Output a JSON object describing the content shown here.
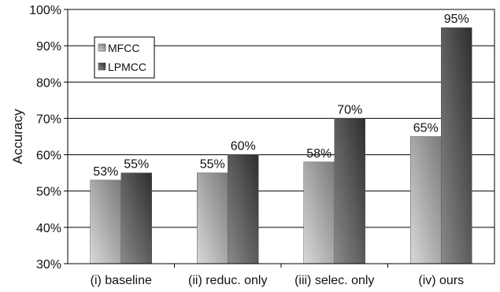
{
  "chart_data": {
    "type": "bar",
    "categories": [
      "(i) baseline",
      "(ii) reduc. only",
      "(iii) selec. only",
      "(iv) ours"
    ],
    "series": [
      {
        "name": "MFCC",
        "values": [
          53,
          55,
          58,
          65
        ],
        "labels": [
          "53%",
          "55%",
          "58%",
          "65%"
        ]
      },
      {
        "name": "LPMCC",
        "values": [
          55,
          60,
          70,
          95
        ],
        "labels": [
          "55%",
          "60%",
          "70%",
          "95%"
        ]
      }
    ],
    "title": "",
    "xlabel": "",
    "ylabel": "Accuracy",
    "ylim": [
      30,
      100
    ],
    "yticks": [
      30,
      40,
      50,
      60,
      70,
      80,
      90,
      100
    ],
    "ytick_labels": [
      "30%",
      "40%",
      "50%",
      "60%",
      "70%",
      "80%",
      "90%",
      "100%"
    ],
    "grid": true,
    "legend_position": "top-left",
    "colors": {
      "MFCC": "#8c8c8c",
      "LPMCC": "#444444"
    }
  }
}
